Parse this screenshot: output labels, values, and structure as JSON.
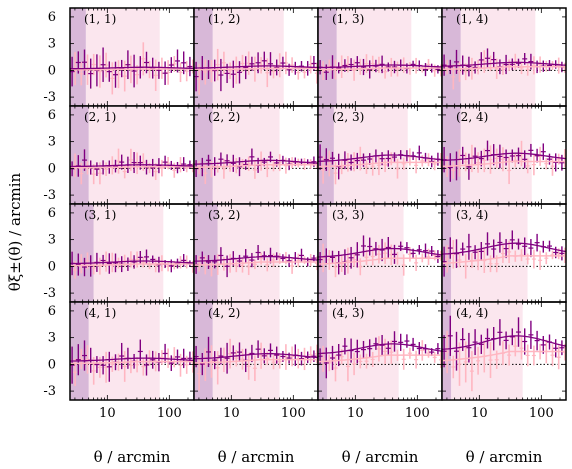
{
  "chart_data": {
    "type": "scatter",
    "grid": "4x4 panels, shared axes",
    "x_scale": "log",
    "xlim": [
      2.5,
      250
    ],
    "ylim": [
      -4,
      7
    ],
    "x_ticks": [
      10,
      100
    ],
    "y_ticks": [
      -3,
      0,
      3,
      6
    ],
    "xlabel": "θ / arcmin",
    "ylabel": "θξ±(θ) / arcmin",
    "colors": {
      "xi_plus": "#800080",
      "xi_minus": "#ffb6c1",
      "excluded_dark": "#d8b8d8",
      "excluded_light": "#fbe6ee",
      "zero_line": "#000000"
    },
    "panels": [
      {
        "label": "(1, 1)",
        "model_amp": 0.35,
        "noise": 1.8,
        "mask_dark": [
          2.5,
          4.5
        ],
        "mask_light": [
          4.5,
          70
        ]
      },
      {
        "label": "(1, 2)",
        "model_amp": 0.5,
        "noise": 1.6,
        "mask_dark": [
          2.5,
          5
        ],
        "mask_light": [
          5,
          70
        ]
      },
      {
        "label": "(1, 3)",
        "model_amp": 0.6,
        "noise": 1.0,
        "mask_dark": [
          2.5,
          5
        ],
        "mask_light": [
          5,
          80
        ]
      },
      {
        "label": "(1, 4)",
        "model_amp": 0.9,
        "noise": 1.1,
        "mask_dark": [
          2.5,
          5
        ],
        "mask_light": [
          5,
          80
        ]
      },
      {
        "label": "(2, 1)",
        "model_amp": 0.4,
        "noise": 1.2,
        "mask_dark": [
          2.5,
          5
        ],
        "mask_light": [
          5,
          70
        ]
      },
      {
        "label": "(2, 2)",
        "model_amp": 0.9,
        "noise": 1.0,
        "mask_dark": [
          2.5,
          5
        ],
        "mask_light": [
          5,
          60
        ]
      },
      {
        "label": "(2, 3)",
        "model_amp": 1.5,
        "noise": 1.1,
        "mask_dark": [
          2.5,
          4.5
        ],
        "mask_light": [
          4.5,
          70
        ]
      },
      {
        "label": "(2, 4)",
        "model_amp": 1.7,
        "noise": 1.4,
        "mask_dark": [
          2.5,
          5
        ],
        "mask_light": [
          5,
          70
        ]
      },
      {
        "label": "(3, 1)",
        "model_amp": 0.6,
        "noise": 1.0,
        "mask_dark": [
          2.5,
          6
        ],
        "mask_light": [
          6,
          80
        ]
      },
      {
        "label": "(3, 2)",
        "model_amp": 1.1,
        "noise": 1.0,
        "mask_dark": [
          2.5,
          6
        ],
        "mask_light": [
          6,
          60
        ]
      },
      {
        "label": "(3, 3)",
        "model_amp": 2.0,
        "noise": 1.2,
        "mask_dark": [
          2.5,
          3.5
        ],
        "mask_light": [
          3.5,
          60
        ]
      },
      {
        "label": "(3, 4)",
        "model_amp": 2.6,
        "noise": 1.2,
        "mask_dark": [
          2.5,
          3.5
        ],
        "mask_light": [
          3.5,
          60
        ]
      },
      {
        "label": "(4, 1)",
        "model_amp": 0.7,
        "noise": 1.5,
        "mask_dark": [
          2.5,
          5
        ],
        "mask_light": [
          5,
          70
        ]
      },
      {
        "label": "(4, 2)",
        "model_amp": 1.2,
        "noise": 1.5,
        "mask_dark": [
          2.5,
          5
        ],
        "mask_light": [
          5,
          60
        ]
      },
      {
        "label": "(4, 3)",
        "model_amp": 2.3,
        "noise": 1.3,
        "mask_dark": [
          2.5,
          3.5
        ],
        "mask_light": [
          3.5,
          50
        ]
      },
      {
        "label": "(4, 4)",
        "model_amp": 3.2,
        "noise": 1.8,
        "mask_dark": [
          2.5,
          3.5
        ],
        "mask_light": [
          3.5,
          50
        ]
      }
    ]
  }
}
